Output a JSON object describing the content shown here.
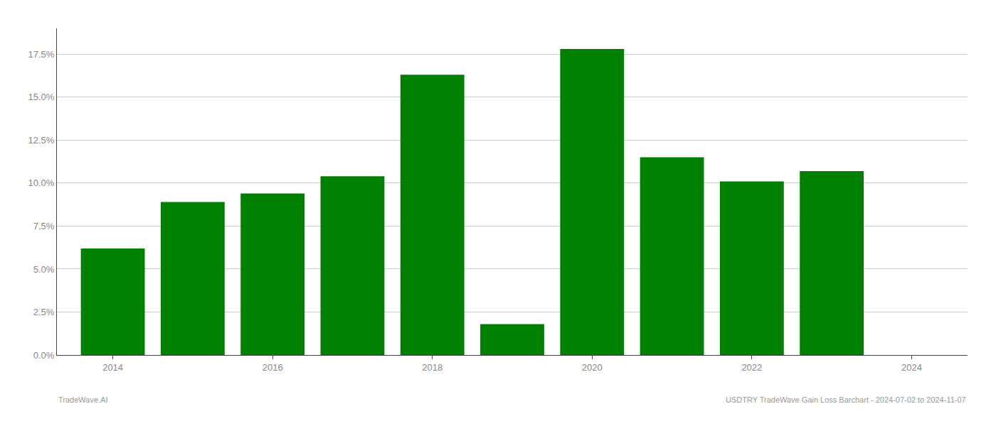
{
  "chart_data": {
    "type": "bar",
    "x": [
      2014,
      2015,
      2016,
      2017,
      2018,
      2019,
      2020,
      2021,
      2022,
      2023
    ],
    "values": [
      0.062,
      0.089,
      0.094,
      0.104,
      0.163,
      0.018,
      0.178,
      0.115,
      0.101,
      0.107
    ],
    "color": "#008000",
    "xlim": [
      2013.3,
      2024.7
    ],
    "xticks": [
      2014,
      2016,
      2018,
      2020,
      2022,
      2024
    ],
    "ylim": [
      0,
      0.19
    ],
    "yticks": [
      {
        "value": 0.0,
        "label": "0.0%"
      },
      {
        "value": 0.025,
        "label": "2.5%"
      },
      {
        "value": 0.05,
        "label": "5.0%"
      },
      {
        "value": 0.075,
        "label": "7.5%"
      },
      {
        "value": 0.1,
        "label": "10.0%"
      },
      {
        "value": 0.125,
        "label": "12.5%"
      },
      {
        "value": 0.15,
        "label": "15.0%"
      },
      {
        "value": 0.175,
        "label": "17.5%"
      }
    ],
    "grid": true,
    "annotations": [
      "TradeWave.AI",
      "USDTRY TradeWave Gain Loss Barchart - 2024-07-02 to 2024-11-07"
    ]
  }
}
